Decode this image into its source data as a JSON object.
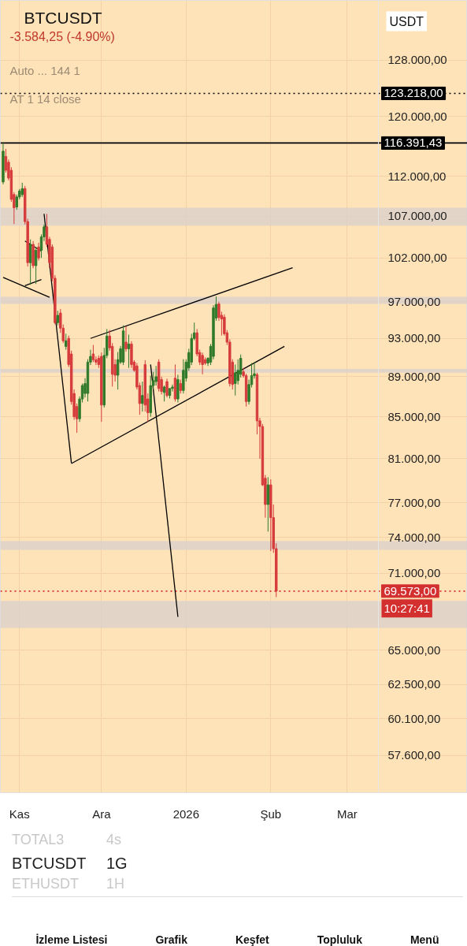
{
  "chart_data": {
    "type": "candlestick",
    "title": "BTCUSDT",
    "subtitle": "-3.584,25 (-4.90%)",
    "x": [
      "2025-10-26",
      "2025-10-27",
      "2025-10-28",
      "2025-10-29",
      "2025-10-30",
      "2025-10-31",
      "2025-11-01",
      "2025-11-02",
      "2025-11-03",
      "2025-11-04",
      "2025-11-05",
      "2025-11-06",
      "2025-11-07",
      "2025-11-08",
      "2025-11-09",
      "2025-11-10",
      "2025-11-11",
      "2025-11-12",
      "2025-11-13",
      "2025-11-14",
      "2025-11-15",
      "2025-11-16",
      "2025-11-17",
      "2025-11-18",
      "2025-11-19",
      "2025-11-20",
      "2025-11-21",
      "2025-11-22",
      "2025-11-23",
      "2025-11-24",
      "2025-11-25",
      "2025-11-26",
      "2025-11-27",
      "2025-11-28",
      "2025-11-29",
      "2025-11-30",
      "2025-12-01",
      "2025-12-02",
      "2025-12-03",
      "2025-12-04",
      "2025-12-05",
      "2025-12-06",
      "2025-12-07",
      "2025-12-08",
      "2025-12-09",
      "2025-12-10",
      "2025-12-11",
      "2025-12-12",
      "2025-12-13",
      "2025-12-14",
      "2025-12-15",
      "2025-12-16",
      "2025-12-17",
      "2025-12-18",
      "2025-12-19",
      "2025-12-20",
      "2025-12-21",
      "2025-12-22",
      "2025-12-23",
      "2025-12-24",
      "2025-12-25",
      "2025-12-26",
      "2025-12-27",
      "2025-12-28",
      "2025-12-29",
      "2025-12-30",
      "2025-12-31",
      "2026-01-01",
      "2026-01-02",
      "2026-01-03",
      "2026-01-04",
      "2026-01-05",
      "2026-01-06",
      "2026-01-07",
      "2026-01-08",
      "2026-01-09",
      "2026-01-10",
      "2026-01-11",
      "2026-01-12",
      "2026-01-13",
      "2026-01-14",
      "2026-01-15",
      "2026-01-16",
      "2026-01-17",
      "2026-01-18",
      "2026-01-19",
      "2026-01-20",
      "2026-01-21",
      "2026-01-22",
      "2026-01-23",
      "2026-01-24",
      "2026-01-25",
      "2026-01-26",
      "2026-01-27",
      "2026-01-28",
      "2026-01-29",
      "2026-01-30",
      "2026-01-31",
      "2026-02-01",
      "2026-02-02",
      "2026-02-03"
    ],
    "ohlc": [
      [
        111300,
        116400,
        111000,
        115300
      ],
      [
        114600,
        115600,
        112500,
        112800
      ],
      [
        113850,
        114200,
        111500,
        111800
      ],
      [
        112800,
        113200,
        108800,
        109100
      ],
      [
        109700,
        110000,
        106050,
        108050
      ],
      [
        108150,
        109700,
        107800,
        109400
      ],
      [
        109400,
        110400,
        109100,
        110150
      ],
      [
        109700,
        111200,
        109400,
        110450
      ],
      [
        110450,
        110800,
        106000,
        106350
      ],
      [
        106350,
        106700,
        101000,
        101450
      ],
      [
        101450,
        104200,
        98900,
        103600
      ],
      [
        103600,
        104000,
        100800,
        101100
      ],
      [
        101100,
        103300,
        99000,
        102900
      ],
      [
        103300,
        103800,
        101700,
        102000
      ],
      [
        102900,
        104800,
        102000,
        104500
      ],
      [
        104500,
        106000,
        104000,
        105700
      ],
      [
        105700,
        107300,
        103300,
        103600
      ],
      [
        104200,
        104500,
        100800,
        101450
      ],
      [
        103300,
        103600,
        99300,
        99650
      ],
      [
        99650,
        100000,
        94500,
        94700
      ],
      [
        94700,
        96000,
        94400,
        95500
      ],
      [
        95750,
        96200,
        93600,
        94100
      ],
      [
        94100,
        94500,
        92500,
        92750
      ],
      [
        92150,
        93500,
        91800,
        92750
      ],
      [
        93000,
        93300,
        90000,
        90250
      ],
      [
        91350,
        91700,
        86200,
        86500
      ],
      [
        87300,
        87700,
        84700,
        85000
      ],
      [
        86000,
        86300,
        83450,
        84800
      ],
      [
        84800,
        87000,
        84500,
        86750
      ],
      [
        86750,
        88300,
        86400,
        88100
      ],
      [
        87300,
        88850,
        86900,
        88300
      ],
      [
        87300,
        90800,
        86500,
        90500
      ],
      [
        90500,
        91800,
        90200,
        91100
      ],
      [
        91350,
        92300,
        90500,
        90750
      ],
      [
        90750,
        91100,
        90200,
        90500
      ],
      [
        90900,
        91200,
        89900,
        90250
      ],
      [
        91100,
        91500,
        84500,
        86150
      ],
      [
        86150,
        92000,
        85900,
        91200
      ],
      [
        91200,
        94000,
        90900,
        93250
      ],
      [
        93250,
        93900,
        91700,
        92000
      ],
      [
        92150,
        92500,
        88000,
        89250
      ],
      [
        90250,
        90800,
        88500,
        89150
      ],
      [
        89150,
        91550,
        87700,
        90750
      ],
      [
        90500,
        92200,
        90300,
        91900
      ],
      [
        90500,
        94400,
        90200,
        93800
      ],
      [
        92600,
        94300,
        91600,
        91900
      ],
      [
        91900,
        93400,
        89900,
        92400
      ],
      [
        92400,
        92700,
        89900,
        90250
      ],
      [
        90500,
        90700,
        89500,
        89650
      ],
      [
        90100,
        90400,
        87700,
        87950
      ],
      [
        88100,
        88400,
        85200,
        86300
      ],
      [
        86300,
        88500,
        85500,
        87100
      ],
      [
        90250,
        90700,
        85500,
        86150
      ],
      [
        86750,
        87300,
        84500,
        85400
      ],
      [
        85400,
        89100,
        85000,
        88100
      ],
      [
        88100,
        89500,
        87700,
        88600
      ],
      [
        88500,
        90100,
        88100,
        89000
      ],
      [
        90500,
        90800,
        87500,
        87800
      ],
      [
        88700,
        89000,
        87200,
        87500
      ],
      [
        87400,
        88100,
        86500,
        87950
      ],
      [
        88500,
        88800,
        86900,
        87100
      ],
      [
        87100,
        87800,
        86800,
        87800
      ],
      [
        87800,
        88200,
        87500,
        87950
      ],
      [
        88850,
        90250,
        86500,
        86750
      ],
      [
        86750,
        89200,
        86400,
        88700
      ],
      [
        88300,
        88700,
        87300,
        87600
      ],
      [
        87600,
        90800,
        87300,
        89650
      ],
      [
        88850,
        90800,
        88500,
        90500
      ],
      [
        89900,
        91900,
        89600,
        91500
      ],
      [
        90500,
        93500,
        90200,
        93000
      ],
      [
        93000,
        94700,
        92800,
        93600
      ],
      [
        93600,
        94000,
        91100,
        91350
      ],
      [
        91500,
        91800,
        90200,
        90500
      ],
      [
        91200,
        91500,
        89250,
        90250
      ],
      [
        90750,
        91000,
        90200,
        90400
      ],
      [
        90400,
        91000,
        90100,
        90900
      ],
      [
        90500,
        92400,
        90200,
        92150
      ],
      [
        91100,
        96600,
        90800,
        96300
      ],
      [
        95200,
        97600,
        94900,
        96700
      ],
      [
        96750,
        97000,
        94900,
        95250
      ],
      [
        95500,
        95900,
        93300,
        95100
      ],
      [
        95300,
        95600,
        93300,
        93500
      ],
      [
        93600,
        93900,
        92300,
        92600
      ],
      [
        92600,
        92900,
        88000,
        88300
      ],
      [
        90500,
        90800,
        87700,
        88200
      ],
      [
        88300,
        90250,
        87100,
        89400
      ],
      [
        88600,
        90800,
        88200,
        89650
      ],
      [
        89250,
        91300,
        88900,
        90900
      ],
      [
        89500,
        89900,
        88900,
        89100
      ],
      [
        89100,
        89300,
        86000,
        86500
      ],
      [
        86500,
        88700,
        86200,
        88200
      ],
      [
        88200,
        90400,
        87900,
        89100
      ],
      [
        89100,
        90500,
        88800,
        89300
      ],
      [
        89200,
        89400,
        83300,
        84600
      ],
      [
        84600,
        84900,
        81000,
        84050
      ],
      [
        84050,
        84300,
        78500,
        78600
      ],
      [
        79200,
        79500,
        75700,
        76850
      ],
      [
        76850,
        79300,
        74500,
        78600
      ],
      [
        78600,
        79100,
        72850,
        75700
      ],
      [
        75700,
        76850,
        72700,
        73050
      ],
      [
        73050,
        73500,
        69100,
        69573
      ]
    ],
    "colors": [
      "#2f7a2a",
      "#d63c3c",
      "#d63c3c",
      "#d63c3c",
      "#d63c3c",
      "#2f7a2a",
      "#2f7a2a",
      "#2f7a2a",
      "#d63c3c",
      "#d63c3c",
      "#2f7a2a",
      "#d63c3c",
      "#2f7a2a",
      "#d63c3c",
      "#2f7a2a",
      "#2f7a2a",
      "#d63c3c",
      "#d63c3c",
      "#d63c3c",
      "#d63c3c",
      "#2f7a2a",
      "#d63c3c",
      "#d63c3c",
      "#2f7a2a",
      "#d63c3c",
      "#d63c3c",
      "#d63c3c",
      "#d63c3c",
      "#2f7a2a",
      "#2f7a2a",
      "#2f7a2a",
      "#2f7a2a",
      "#2f7a2a",
      "#d63c3c",
      "#d63c3c",
      "#d63c3c",
      "#d63c3c",
      "#2f7a2a",
      "#2f7a2a",
      "#d63c3c",
      "#d63c3c",
      "#d63c3c",
      "#2f7a2a",
      "#2f7a2a",
      "#2f7a2a",
      "#d63c3c",
      "#2f7a2a",
      "#d63c3c",
      "#d63c3c",
      "#d63c3c",
      "#d63c3c",
      "#2f7a2a",
      "#d63c3c",
      "#d63c3c",
      "#2f7a2a",
      "#2f7a2a",
      "#2f7a2a",
      "#d63c3c",
      "#d63c3c",
      "#2f7a2a",
      "#d63c3c",
      "#2f7a2a",
      "#2f7a2a",
      "#d63c3c",
      "#2f7a2a",
      "#d63c3c",
      "#2f7a2a",
      "#2f7a2a",
      "#2f7a2a",
      "#2f7a2a",
      "#2f7a2a",
      "#d63c3c",
      "#d63c3c",
      "#d63c3c",
      "#d63c3c",
      "#2f7a2a",
      "#2f7a2a",
      "#2f7a2a",
      "#2f7a2a",
      "#d63c3c",
      "#d63c3c",
      "#d63c3c",
      "#d63c3c",
      "#d63c3c",
      "#d63c3c",
      "#2f7a2a",
      "#2f7a2a",
      "#2f7a2a",
      "#d63c3c",
      "#d63c3c",
      "#2f7a2a",
      "#2f7a2a",
      "#2f7a2a",
      "#d63c3c",
      "#d63c3c",
      "#d63c3c",
      "#d63c3c",
      "#2f7a2a",
      "#d63c3c",
      "#d63c3c",
      "#d63c3c"
    ],
    "series": [
      {
        "type": "line",
        "color": "#000000",
        "x": [
          "2025-10-26",
          "2025-11-12"
        ],
        "values": [
          99750,
          97500
        ]
      },
      {
        "type": "line",
        "color": "#000000",
        "x": [
          "2025-11-10",
          "2025-11-20"
        ],
        "values": [
          107300,
          80600
        ]
      },
      {
        "type": "line",
        "color": "#000000",
        "x": [
          "2025-11-20",
          "2026-02-06"
        ],
        "values": [
          80550,
          92150
        ]
      },
      {
        "type": "line",
        "color": "#000000",
        "x": [
          "2025-11-27",
          "2026-02-09"
        ],
        "values": [
          93000,
          100850
        ]
      },
      {
        "type": "line",
        "color": "#000000",
        "x": [
          "2025-12-19",
          "2025-12-29"
        ],
        "values": [
          90250,
          67550
        ]
      },
      {
        "type": "line",
        "color": "#000000",
        "x": [
          "2025-11-03",
          "2025-11-09"
        ],
        "values": [
          104000,
          102800
        ]
      },
      {
        "type": "line",
        "color": "#000000",
        "x": [
          "2025-11-03",
          "2025-11-09"
        ],
        "values": [
          98800,
          99500
        ]
      }
    ],
    "log": true,
    "ylim": [
      55200,
      137100
    ],
    "yticks": [
      {
        "value": 128000,
        "label": "128.000,00"
      },
      {
        "value": 120000,
        "label": "120.000,00"
      },
      {
        "value": 112000,
        "label": "112.000,00"
      },
      {
        "value": 107000,
        "label": "107.000,00"
      },
      {
        "value": 102000,
        "label": "102.000,00"
      },
      {
        "value": 97000,
        "label": "97.000,00"
      },
      {
        "value": 93000,
        "label": "93.000,00"
      },
      {
        "value": 89000,
        "label": "89.000,00"
      },
      {
        "value": 85000,
        "label": "85.000,00"
      },
      {
        "value": 81000,
        "label": "81.000,00"
      },
      {
        "value": 77000,
        "label": "77.000,00"
      },
      {
        "value": 74000,
        "label": "74.000,00"
      },
      {
        "value": 71000,
        "label": "71.000,00"
      },
      {
        "value": 65000,
        "label": "65.000,00"
      },
      {
        "value": 62500,
        "label": "62.500,00"
      },
      {
        "value": 60100,
        "label": "60.100,00"
      },
      {
        "value": 57600,
        "label": "57.600,00"
      }
    ],
    "xlim": [
      "2025-10-25",
      "2026-04-14"
    ],
    "xticks": [
      {
        "value": "2025-11-01",
        "label": "Kas"
      },
      {
        "value": "2025-12-01",
        "label": "Ara"
      },
      {
        "value": "2026-01-01",
        "label": "2026"
      },
      {
        "value": "2026-02-01",
        "label": "Şub"
      },
      {
        "value": "2026-03-01",
        "label": "Mar"
      }
    ],
    "grid": true,
    "ref_lines": [
      {
        "axis": "y",
        "value": 123218,
        "label": "123.218,00",
        "color": "#000000",
        "line_style": "dotted"
      },
      {
        "axis": "y",
        "value": 116391.43,
        "label": "116.391,43",
        "color": "#000000",
        "line_style": "solid"
      },
      {
        "axis": "y",
        "value": 69573,
        "label": "69.573,00",
        "color": "#d32f2f",
        "line_style": "dotted"
      }
    ],
    "bands": [
      {
        "axis": "y",
        "from": 105850,
        "to": 108050,
        "color": "#d8d0cc"
      },
      {
        "axis": "y",
        "from": 96750,
        "to": 97550,
        "color": "#d8d0cc"
      },
      {
        "axis": "y",
        "from": 89400,
        "to": 89800,
        "color": "#d8d0cc"
      },
      {
        "axis": "y",
        "from": 72950,
        "to": 73700,
        "color": "#d8d0cc"
      },
      {
        "axis": "y",
        "from": 66700,
        "to": 68800,
        "color": "#d8d0cc"
      }
    ],
    "annotations": [
      "10:27:41",
      "USDT",
      "Auto ... 144 1",
      "AT 1 14 close",
      "TOTAL3",
      "4s",
      "BTCUSDT",
      "1G",
      "ETHUSDT",
      "1H",
      "İzleme Listesi",
      "Grafik",
      "Keşfet",
      "Topluluk",
      "Menü"
    ]
  }
}
